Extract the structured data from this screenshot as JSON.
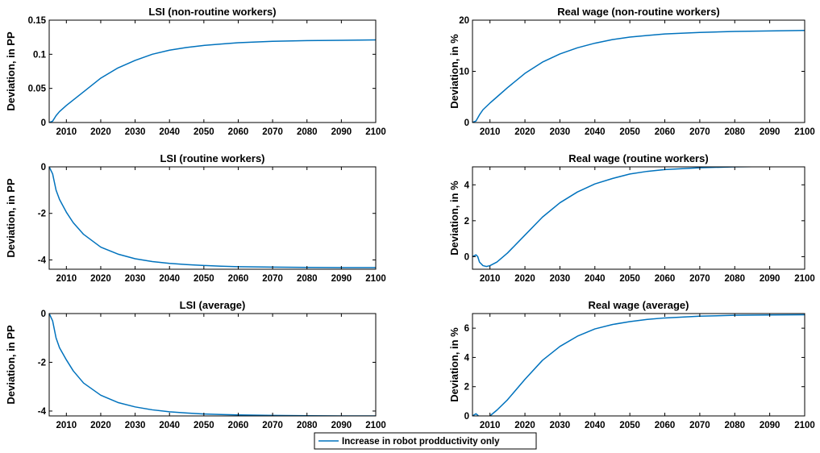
{
  "chart_data": [
    {
      "type": "line",
      "title": "LSI (non-routine workers)",
      "ylabel": "Deviation, in PP",
      "xlim": [
        2005,
        2100
      ],
      "ylim": [
        0,
        0.15
      ],
      "xticks": [
        2010,
        2020,
        2030,
        2040,
        2050,
        2060,
        2070,
        2080,
        2090,
        2100
      ],
      "xtick_labels": [
        "2010",
        "2020",
        "2030",
        "2040",
        "2050",
        "2060",
        "2070",
        "2080",
        "2090",
        "2100"
      ],
      "yticks": [
        0,
        0.05,
        0.1,
        0.15
      ],
      "ytick_labels": [
        "0",
        "0.05",
        "0.1",
        "0.15"
      ],
      "series": [
        {
          "name": "Increase in robot prodductivity only",
          "color": "#0072BD",
          "x": [
            2005,
            2006,
            2007,
            2008,
            2010,
            2012,
            2015,
            2020,
            2025,
            2030,
            2035,
            2040,
            2045,
            2050,
            2055,
            2060,
            2070,
            2080,
            2090,
            2100
          ],
          "y": [
            0,
            0.002,
            0.01,
            0.016,
            0.025,
            0.033,
            0.045,
            0.065,
            0.08,
            0.091,
            0.1,
            0.106,
            0.11,
            0.113,
            0.115,
            0.117,
            0.119,
            0.12,
            0.1205,
            0.121
          ]
        }
      ]
    },
    {
      "type": "line",
      "title": "Real wage (non-routine workers)",
      "ylabel": "Deviation, in %",
      "xlim": [
        2005,
        2100
      ],
      "ylim": [
        0,
        20
      ],
      "xticks": [
        2010,
        2020,
        2030,
        2040,
        2050,
        2060,
        2070,
        2080,
        2090,
        2100
      ],
      "xtick_labels": [
        "2010",
        "2020",
        "2030",
        "2040",
        "2050",
        "2060",
        "2070",
        "2080",
        "2090",
        "2100"
      ],
      "yticks": [
        0,
        10,
        20
      ],
      "ytick_labels": [
        "0",
        "10",
        "20"
      ],
      "series": [
        {
          "name": "Increase in robot prodductivity only",
          "color": "#0072BD",
          "x": [
            2005,
            2006,
            2007,
            2008,
            2010,
            2012,
            2015,
            2020,
            2025,
            2030,
            2035,
            2040,
            2045,
            2050,
            2055,
            2060,
            2070,
            2080,
            2090,
            2100
          ],
          "y": [
            0,
            0.3,
            1.5,
            2.5,
            3.8,
            5.0,
            6.8,
            9.6,
            11.8,
            13.4,
            14.6,
            15.5,
            16.2,
            16.7,
            17.0,
            17.3,
            17.6,
            17.8,
            17.9,
            18.0
          ]
        }
      ]
    },
    {
      "type": "line",
      "title": "LSI (routine workers)",
      "ylabel": "Deviation, in PP",
      "xlim": [
        2005,
        2100
      ],
      "ylim": [
        -4.4,
        0
      ],
      "xticks": [
        2010,
        2020,
        2030,
        2040,
        2050,
        2060,
        2070,
        2080,
        2090,
        2100
      ],
      "xtick_labels": [
        "2010",
        "2020",
        "2030",
        "2040",
        "2050",
        "2060",
        "2070",
        "2080",
        "2090",
        "2100"
      ],
      "yticks": [
        -4,
        -2,
        0
      ],
      "ytick_labels": [
        "-4",
        "-2",
        "0"
      ],
      "series": [
        {
          "name": "Increase in robot prodductivity only",
          "color": "#0072BD",
          "x": [
            2005,
            2006,
            2007,
            2008,
            2010,
            2012,
            2015,
            2020,
            2025,
            2030,
            2035,
            2040,
            2045,
            2050,
            2055,
            2060,
            2070,
            2080,
            2090,
            2100
          ],
          "y": [
            0,
            -0.3,
            -1.0,
            -1.4,
            -1.95,
            -2.4,
            -2.9,
            -3.45,
            -3.75,
            -3.95,
            -4.07,
            -4.15,
            -4.2,
            -4.24,
            -4.27,
            -4.29,
            -4.31,
            -4.32,
            -4.33,
            -4.33
          ]
        }
      ]
    },
    {
      "type": "line",
      "title": "Real wage (routine workers)",
      "ylabel": "Deviation, in %",
      "xlim": [
        2005,
        2100
      ],
      "ylim": [
        -0.7,
        5
      ],
      "xticks": [
        2010,
        2020,
        2030,
        2040,
        2050,
        2060,
        2070,
        2080,
        2090,
        2100
      ],
      "xtick_labels": [
        "2010",
        "2020",
        "2030",
        "2040",
        "2050",
        "2060",
        "2070",
        "2080",
        "2090",
        "2100"
      ],
      "yticks": [
        0,
        2,
        4
      ],
      "ytick_labels": [
        "0",
        "2",
        "4"
      ],
      "series": [
        {
          "name": "Increase in robot prodductivity only",
          "color": "#0072BD",
          "x": [
            2005,
            2006,
            2006.5,
            2007,
            2008,
            2009,
            2010,
            2012,
            2015,
            2020,
            2025,
            2030,
            2035,
            2040,
            2045,
            2050,
            2055,
            2060,
            2070,
            2080,
            2090,
            2100
          ],
          "y": [
            0,
            0.1,
            0.0,
            -0.3,
            -0.5,
            -0.55,
            -0.5,
            -0.3,
            0.2,
            1.2,
            2.2,
            3.0,
            3.6,
            4.05,
            4.35,
            4.6,
            4.75,
            4.85,
            4.95,
            5.0,
            5.02,
            5.03
          ]
        }
      ]
    },
    {
      "type": "line",
      "title": "LSI (average)",
      "ylabel": "Deviation, in PP",
      "xlim": [
        2005,
        2100
      ],
      "ylim": [
        -4.2,
        0
      ],
      "xticks": [
        2010,
        2020,
        2030,
        2040,
        2050,
        2060,
        2070,
        2080,
        2090,
        2100
      ],
      "xtick_labels": [
        "2010",
        "2020",
        "2030",
        "2040",
        "2050",
        "2060",
        "2070",
        "2080",
        "2090",
        "2100"
      ],
      "yticks": [
        -4,
        -2,
        0
      ],
      "ytick_labels": [
        "-4",
        "-2",
        "0"
      ],
      "series": [
        {
          "name": "Increase in robot prodductivity only",
          "color": "#0072BD",
          "x": [
            2005,
            2006,
            2007,
            2008,
            2010,
            2012,
            2015,
            2020,
            2025,
            2030,
            2035,
            2040,
            2045,
            2050,
            2055,
            2060,
            2070,
            2080,
            2090,
            2100
          ],
          "y": [
            0,
            -0.3,
            -1.0,
            -1.4,
            -1.9,
            -2.35,
            -2.85,
            -3.35,
            -3.65,
            -3.83,
            -3.95,
            -4.03,
            -4.08,
            -4.12,
            -4.14,
            -4.16,
            -4.18,
            -4.19,
            -4.2,
            -4.2
          ]
        }
      ]
    },
    {
      "type": "line",
      "title": "Real wage (average)",
      "ylabel": "Deviation, in %",
      "xlim": [
        2005,
        2100
      ],
      "ylim": [
        0,
        7
      ],
      "xticks": [
        2010,
        2020,
        2030,
        2040,
        2050,
        2060,
        2070,
        2080,
        2090,
        2100
      ],
      "xtick_labels": [
        "2010",
        "2020",
        "2030",
        "2040",
        "2050",
        "2060",
        "2070",
        "2080",
        "2090",
        "2100"
      ],
      "yticks": [
        0,
        2,
        4,
        6
      ],
      "ytick_labels": [
        "0",
        "2",
        "4",
        "6"
      ],
      "series": [
        {
          "name": "Increase in robot prodductivity only",
          "color": "#0072BD",
          "x": [
            2005,
            2006,
            2006.5,
            2007,
            2008,
            2010,
            2012,
            2015,
            2020,
            2025,
            2030,
            2035,
            2040,
            2045,
            2050,
            2055,
            2060,
            2070,
            2080,
            2090,
            2100
          ],
          "y": [
            0,
            0.15,
            0.05,
            -0.1,
            -0.2,
            0.0,
            0.4,
            1.1,
            2.5,
            3.8,
            4.75,
            5.45,
            5.95,
            6.25,
            6.45,
            6.6,
            6.7,
            6.82,
            6.88,
            6.9,
            6.92
          ]
        }
      ]
    }
  ],
  "legend": {
    "label": "Increase in robot prodductivity only",
    "color": "#0072BD",
    "placement": "bottom-center"
  }
}
